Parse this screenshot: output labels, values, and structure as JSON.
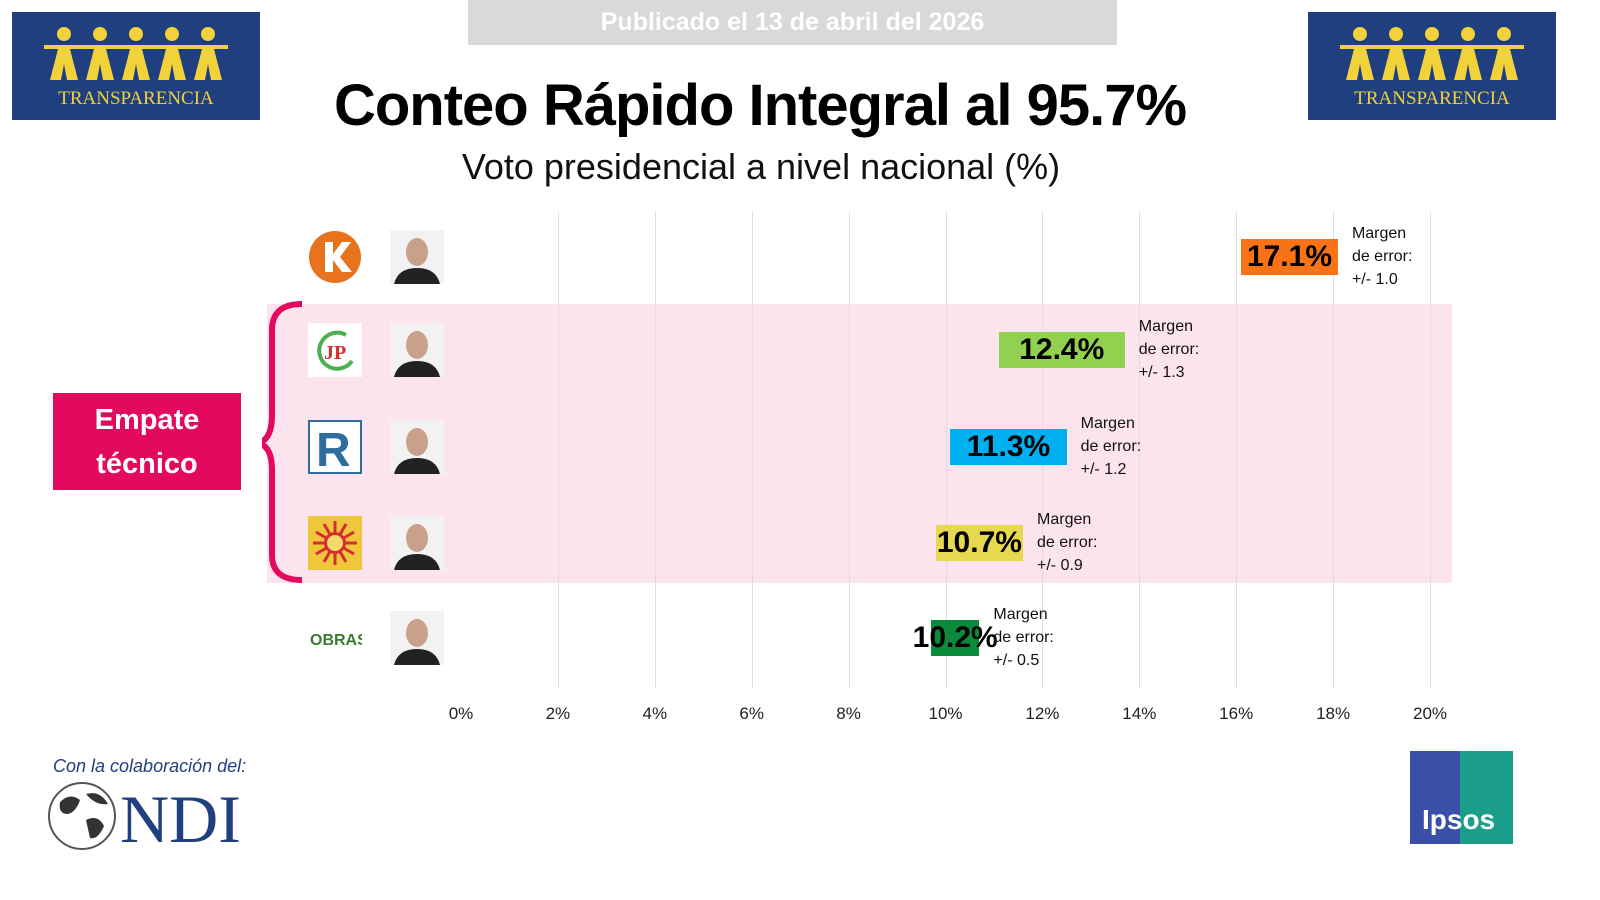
{
  "header": {
    "published": "Publicado el 13 de abril del 2026",
    "title": "Conteo Rápido Integral al 95.7%",
    "subtitle": "Voto presidencial a nivel nacional (%)"
  },
  "logos": {
    "left": "TRANSPARENCIA",
    "right": "TRANSPARENCIA",
    "collab_label": "Con la colaboración del:",
    "ndi": "NDI",
    "ipsos": "Ipsos"
  },
  "empate": {
    "line1": "Empate",
    "line2": "técnico"
  },
  "chart_data": {
    "type": "bar",
    "title": "Conteo Rápido Integral al 95.7%",
    "subtitle": "Voto presidencial a nivel nacional (%)",
    "xlim": [
      0,
      20
    ],
    "xticks": [
      "0%",
      "2%",
      "4%",
      "6%",
      "8%",
      "10%",
      "12%",
      "14%",
      "16%",
      "18%",
      "20%"
    ],
    "grid": true,
    "margin_label": [
      "Margen",
      "de error:"
    ],
    "rows": [
      {
        "value": 17.1,
        "label": "17.1%",
        "margin": 1.0,
        "margin_text": "+/- 1.0",
        "color": "#f97316",
        "party_logo": "K",
        "logo_color": "#e8731f"
      },
      {
        "value": 12.4,
        "label": "12.4%",
        "margin": 1.3,
        "margin_text": "+/- 1.3",
        "color": "#92d050",
        "party_logo": "JP",
        "logo_color": "#d32f2f"
      },
      {
        "value": 11.3,
        "label": "11.3%",
        "margin": 1.2,
        "margin_text": "+/- 1.2",
        "color": "#00b0f0",
        "party_logo": "R",
        "logo_color": "#2e6e9e"
      },
      {
        "value": 10.7,
        "label": "10.7%",
        "margin": 0.9,
        "margin_text": "+/- 0.9",
        "color": "#e6d84f",
        "party_logo": "sun",
        "logo_color": "#d32f2f"
      },
      {
        "value": 10.2,
        "label": "10.2%",
        "margin": 0.5,
        "margin_text": "+/- 0.5",
        "color": "#0a8a3a",
        "party_logo": "OBRAS",
        "logo_color": "#3c7a2c"
      }
    ],
    "highlight_rows": [
      1,
      2,
      3
    ]
  }
}
